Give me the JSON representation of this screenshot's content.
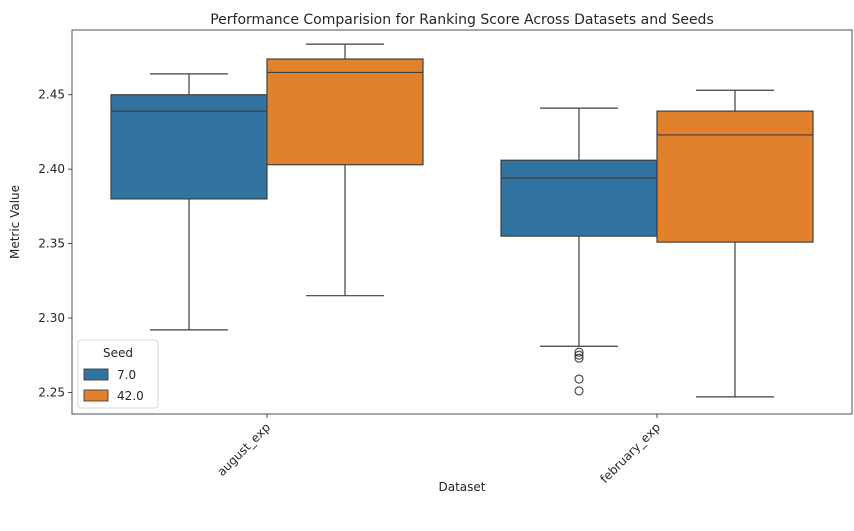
{
  "chart_data": {
    "type": "box",
    "title": "Performance Comparision for Ranking Score Across Datasets and Seeds",
    "xlabel": "Dataset",
    "ylabel": "Metric Value",
    "categories": [
      "august_exp",
      "february_exp"
    ],
    "ylim": [
      2.2355,
      2.4935
    ],
    "yticks": [
      2.25,
      2.3,
      2.35,
      2.4,
      2.45
    ],
    "ytick_labels": [
      "2.25",
      "2.30",
      "2.35",
      "2.40",
      "2.45"
    ],
    "xtick_rotation": 45,
    "grid": false,
    "legend": {
      "title": "Seed",
      "position": "lower-left"
    },
    "series": [
      {
        "name": "7.0",
        "color": "#3274a1",
        "boxes": [
          {
            "category": "august_exp",
            "whisker_low": 2.292,
            "q1": 2.38,
            "median": 2.439,
            "q3": 2.45,
            "whisker_high": 2.464,
            "outliers": []
          },
          {
            "category": "february_exp",
            "whisker_low": 2.281,
            "q1": 2.355,
            "median": 2.394,
            "q3": 2.406,
            "whisker_high": 2.441,
            "outliers": [
              2.277,
              2.275,
              2.273,
              2.259,
              2.251
            ]
          }
        ]
      },
      {
        "name": "42.0",
        "color": "#e1812c",
        "boxes": [
          {
            "category": "august_exp",
            "whisker_low": 2.315,
            "q1": 2.403,
            "median": 2.465,
            "q3": 2.474,
            "whisker_high": 2.484,
            "outliers": []
          },
          {
            "category": "february_exp",
            "whisker_low": 2.247,
            "q1": 2.351,
            "median": 2.423,
            "q3": 2.439,
            "whisker_high": 2.453,
            "outliers": []
          }
        ]
      }
    ]
  }
}
